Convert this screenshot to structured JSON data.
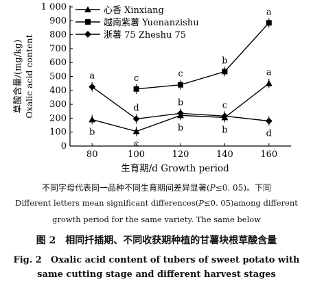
{
  "chart_data": {
    "type": "line",
    "x": [
      80,
      100,
      120,
      140,
      160
    ],
    "xlabel": "生育期/d Growth period",
    "ylabel_cn": "草酸含量/(mg/kg)",
    "ylabel_en": "Oxalic acid content",
    "ylim": [
      0,
      1000
    ],
    "xlim": [
      70,
      170
    ],
    "yticks": [
      "0",
      "100",
      "200",
      "300",
      "400",
      "500",
      "600",
      "700",
      "800",
      "900",
      "1 000"
    ],
    "xticks": [
      "80",
      "100",
      "120",
      "140",
      "160"
    ],
    "legend_position": "top-left",
    "grid": false,
    "series": [
      {
        "name": "心香 Xinxiang",
        "marker": "triangle",
        "x": [
          80,
          100,
          120,
          140,
          160
        ],
        "values": [
          190,
          105,
          220,
          205,
          450
        ],
        "letters": [
          "b",
          "c",
          "b",
          "b",
          "a"
        ],
        "letter_pos": [
          "below",
          "below",
          "below",
          "below",
          "above"
        ]
      },
      {
        "name": "越南紫薯 Yuenanzishu",
        "marker": "square",
        "x": [
          100,
          120,
          140,
          160
        ],
        "values": [
          410,
          440,
          535,
          885
        ],
        "letters": [
          "c",
          "c",
          "b",
          "a"
        ],
        "letter_pos": [
          "above",
          "above",
          "above",
          "above"
        ]
      },
      {
        "name": "浙薯 75 Zheshu 75",
        "marker": "diamond",
        "x": [
          80,
          100,
          120,
          140,
          160
        ],
        "values": [
          425,
          195,
          235,
          215,
          180
        ],
        "letters": [
          "a",
          "d",
          "b",
          "c",
          "d"
        ],
        "letter_pos": [
          "above",
          "above",
          "above",
          "above",
          "below"
        ]
      }
    ]
  },
  "notes": {
    "cn_before": "不同字母代表同一品种不同生育期间差异显著(",
    "cn_p": "P",
    "cn_after": "≤0. 05)。下同",
    "en1_before": "Different letters mean significant differences(",
    "en1_p": "P",
    "en1_after": "≤0. 05)among different",
    "en2": "growth period for the same variety. The same below"
  },
  "figure": {
    "title_cn": "图 2　相同扦插期、不同收获期种植的甘薯块根草酸含量",
    "title_en_line1": "Fig. 2　Oxalic acid content of tubers of sweet potato with",
    "title_en_line2": "same cutting stage and different harvest stages"
  }
}
